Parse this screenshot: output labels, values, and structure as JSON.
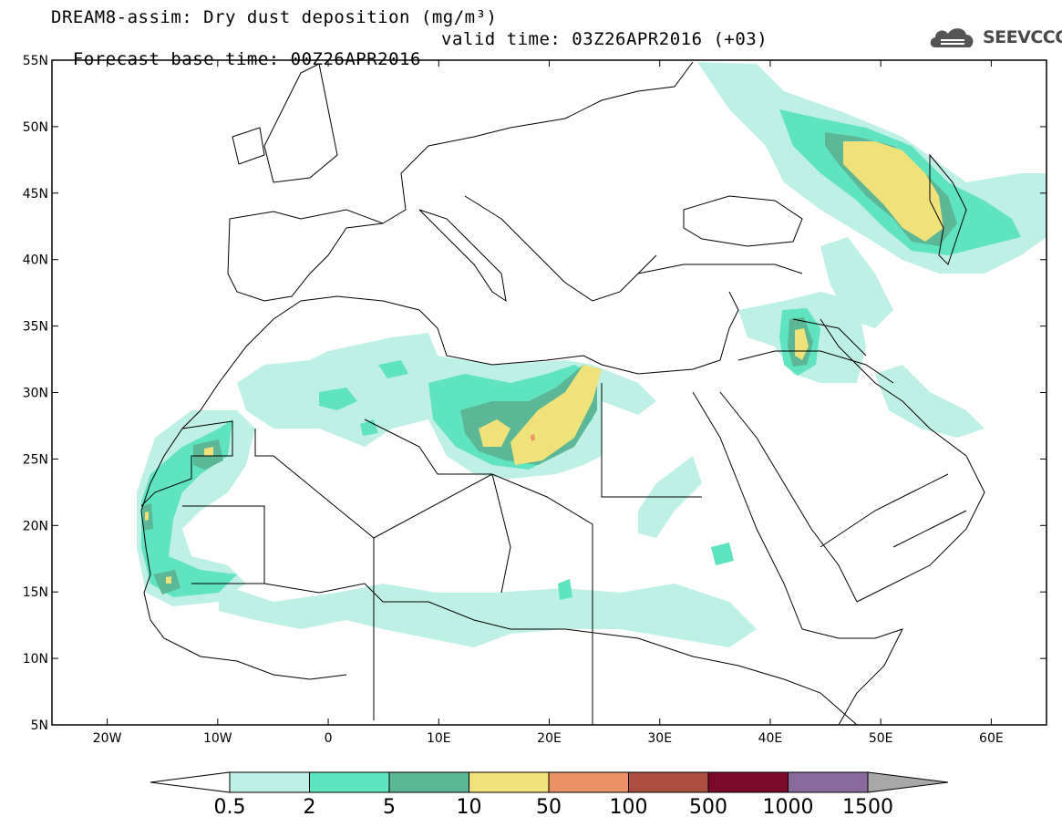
{
  "title": {
    "line1": "DREAM8-assim: Dry dust deposition (mg/m³)",
    "base_time": "Forecast base time: 00Z26APR2016",
    "valid_time": "valid time: 03Z26APR2016 (+03)"
  },
  "logo": {
    "text": "SEEVCCC",
    "icon": "cloud-logo-icon"
  },
  "map": {
    "lon_range": [
      -25,
      65
    ],
    "lat_range": [
      5,
      55
    ],
    "lat_ticks": [
      {
        "value": 55,
        "label": "55N"
      },
      {
        "value": 50,
        "label": "50N"
      },
      {
        "value": 45,
        "label": "45N"
      },
      {
        "value": 40,
        "label": "40N"
      },
      {
        "value": 35,
        "label": "35N"
      },
      {
        "value": 30,
        "label": "30N"
      },
      {
        "value": 25,
        "label": "25N"
      },
      {
        "value": 20,
        "label": "20N"
      },
      {
        "value": 15,
        "label": "15N"
      },
      {
        "value": 10,
        "label": "10N"
      },
      {
        "value": 5,
        "label": "5N"
      }
    ],
    "lon_ticks": [
      {
        "value": -20,
        "label": "20W"
      },
      {
        "value": -10,
        "label": "10W"
      },
      {
        "value": 0,
        "label": "0"
      },
      {
        "value": 10,
        "label": "10E"
      },
      {
        "value": 20,
        "label": "20E"
      },
      {
        "value": 30,
        "label": "30E"
      },
      {
        "value": 40,
        "label": "40E"
      },
      {
        "value": 50,
        "label": "50E"
      },
      {
        "value": 60,
        "label": "60E"
      }
    ]
  },
  "colorbar": {
    "labels": [
      "0.5",
      "2",
      "5",
      "10",
      "50",
      "100",
      "500",
      "1000",
      "1500"
    ],
    "colors": [
      "#bff0e6",
      "#5fe3c0",
      "#5bb795",
      "#f0e27a",
      "#ea9168",
      "#ad4e43",
      "#7a0a28",
      "#8a6a9c"
    ],
    "under_color": "#ffffff",
    "over_color": "#a8a8a8"
  }
}
